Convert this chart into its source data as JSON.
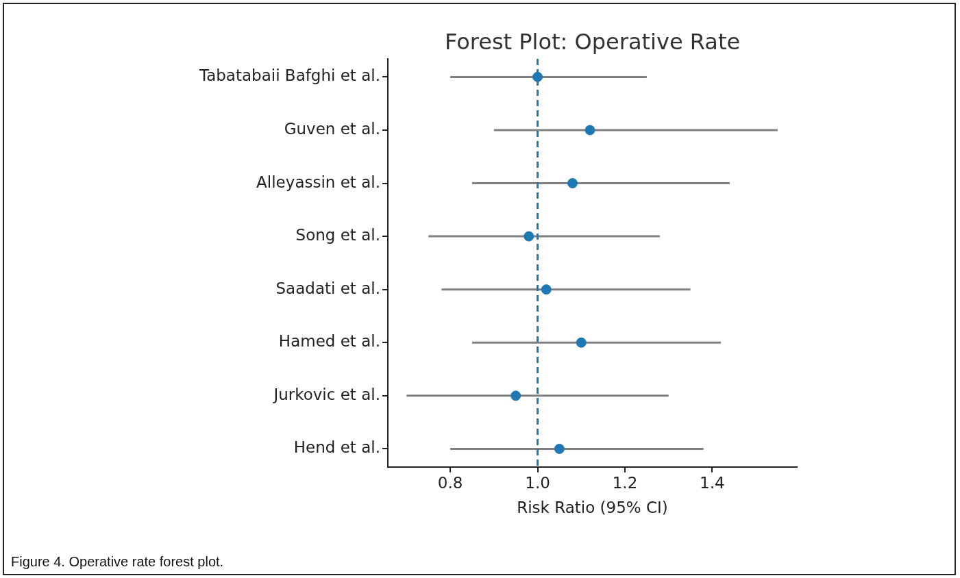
{
  "chart_data": {
    "type": "scatter",
    "orientation": "horizontal",
    "title": "Forest Plot: Operative Rate",
    "xlabel": "Risk Ratio (95% CI)",
    "categories": [
      "Tabatabaii Bafghi et al.",
      "Guven et al.",
      "Alleyassin et al.",
      "Song et al.",
      "Saadati et al.",
      "Hamed et al.",
      "Jurkovic et al.",
      "Hend et al."
    ],
    "series": [
      {
        "color": "#1f77b4",
        "values": [
          1.0,
          1.12,
          1.08,
          0.98,
          1.02,
          1.1,
          0.95,
          1.05
        ],
        "errors": [
          [
            0.8,
            1.25
          ],
          [
            0.9,
            1.55
          ],
          [
            0.85,
            1.44
          ],
          [
            0.75,
            1.28
          ],
          [
            0.78,
            1.35
          ],
          [
            0.85,
            1.42
          ],
          [
            0.7,
            1.3
          ],
          [
            0.8,
            1.38
          ]
        ]
      }
    ],
    "xlim": [
      0.657,
      1.594
    ],
    "xticks": [
      {
        "value": 0.8,
        "label": "0.8"
      },
      {
        "value": 1.0,
        "label": "1.0"
      },
      {
        "value": 1.2,
        "label": "1.2"
      },
      {
        "value": 1.4,
        "label": "1.4"
      }
    ],
    "ref_lines": [
      {
        "axis": "x",
        "value": 1.0,
        "color": "#1f77b4",
        "line_style": "dashed"
      }
    ],
    "marker": "circle",
    "legend": false,
    "grid": false,
    "annotations": [
      "Figure 4. Operative rate forest plot."
    ]
  }
}
